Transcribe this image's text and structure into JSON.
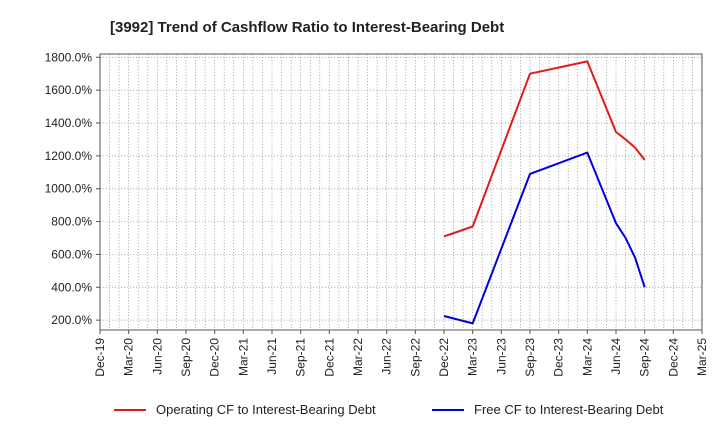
{
  "chart_data": {
    "type": "line",
    "title": "[3992]  Trend of Cashflow Ratio to Interest-Bearing Debt",
    "xlabel": "",
    "ylabel": "",
    "x_tick_labels": [
      "Dec-19",
      "Mar-20",
      "Jun-20",
      "Sep-20",
      "Dec-20",
      "Mar-21",
      "Jun-21",
      "Sep-21",
      "Dec-21",
      "Mar-22",
      "Jun-22",
      "Sep-22",
      "Dec-22",
      "Mar-23",
      "Jun-23",
      "Sep-23",
      "Dec-23",
      "Mar-24",
      "Jun-24",
      "Sep-24",
      "Dec-24",
      "Mar-25"
    ],
    "y_tick_labels": [
      "200.0%",
      "400.0%",
      "600.0%",
      "800.0%",
      "1000.0%",
      "1200.0%",
      "1400.0%",
      "1600.0%",
      "1800.0%"
    ],
    "y_ticks": [
      200,
      400,
      600,
      800,
      1000,
      1200,
      1400,
      1600,
      1800
    ],
    "ylim": [
      140,
      1820
    ],
    "x_index_range": [
      0,
      21
    ],
    "grid": true,
    "legend_position": "bottom",
    "series": [
      {
        "name": "Operating CF to Interest-Bearing Debt",
        "color": "#e31a1c",
        "points": [
          {
            "x": "Dec-22",
            "y": 710
          },
          {
            "x": "Mar-23",
            "y": 770
          },
          {
            "x": "Sep-23",
            "y": 1700
          },
          {
            "x": "Mar-24",
            "y": 1775
          },
          {
            "x": "Jun-24",
            "y": 1345
          },
          {
            "x": "Jul-24",
            "y": 1300
          },
          {
            "x": "Aug-24",
            "y": 1250
          },
          {
            "x": "Sep-24",
            "y": 1175
          }
        ]
      },
      {
        "name": "Free CF to Interest-Bearing Debt",
        "color": "#0000e0",
        "points": [
          {
            "x": "Dec-22",
            "y": 225
          },
          {
            "x": "Mar-23",
            "y": 180
          },
          {
            "x": "Sep-23",
            "y": 1090
          },
          {
            "x": "Mar-24",
            "y": 1220
          },
          {
            "x": "Jun-24",
            "y": 790
          },
          {
            "x": "Jul-24",
            "y": 700
          },
          {
            "x": "Aug-24",
            "y": 580
          },
          {
            "x": "Sep-24",
            "y": 400
          }
        ]
      }
    ]
  }
}
